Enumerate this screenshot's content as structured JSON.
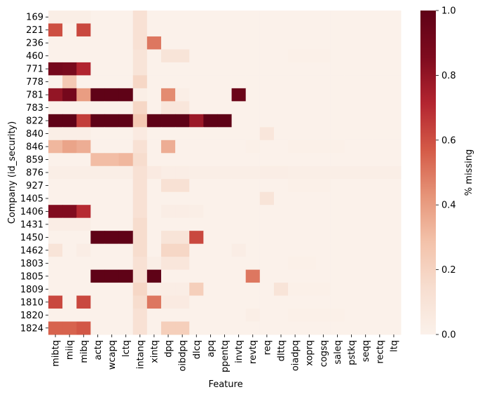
{
  "chart_data": {
    "type": "heatmap",
    "xlabel": "Feature",
    "ylabel": "Company (id_security)",
    "x_categories": [
      "mibtq",
      "miiq",
      "mibq",
      "actq",
      "wcapq",
      "lctq",
      "intanq",
      "xintq",
      "dpq",
      "oibdpq",
      "dlcq",
      "apq",
      "ppentq",
      "invtq",
      "revtq",
      "req",
      "dlttq",
      "oiadpq",
      "xoprq",
      "cogsq",
      "saleq",
      "pstkq",
      "seqq",
      "rectq",
      "ltq"
    ],
    "y_categories": [
      "169",
      "221",
      "236",
      "460",
      "771",
      "778",
      "781",
      "783",
      "822",
      "840",
      "846",
      "859",
      "876",
      "927",
      "1405",
      "1406",
      "1431",
      "1450",
      "1462",
      "1803",
      "1805",
      "1809",
      "1810",
      "1820",
      "1824"
    ],
    "values": [
      [
        0.02,
        0.02,
        0.02,
        0,
        0,
        0,
        0.12,
        0,
        0,
        0,
        0,
        0,
        0,
        0,
        0,
        0,
        0,
        0,
        0,
        0,
        0,
        0,
        0,
        0,
        0
      ],
      [
        0.6,
        0,
        0.62,
        0,
        0,
        0,
        0.12,
        0,
        0,
        0,
        0,
        0,
        0,
        0,
        0,
        0,
        0,
        0,
        0,
        0,
        0,
        0,
        0,
        0,
        0
      ],
      [
        0,
        0,
        0,
        0,
        0,
        0,
        0.12,
        0.5,
        0,
        0,
        0,
        0,
        0,
        0,
        0,
        0,
        0,
        0,
        0,
        0,
        0,
        0,
        0,
        0,
        0
      ],
      [
        0,
        0,
        0,
        0,
        0,
        0,
        0.1,
        0,
        0.1,
        0.1,
        0,
        0,
        0,
        0,
        0,
        0,
        0,
        0.01,
        0.01,
        0.01,
        0,
        0,
        0,
        0,
        0
      ],
      [
        0.9,
        0.88,
        0.72,
        0,
        0,
        0,
        0.1,
        0,
        0,
        0,
        0,
        0,
        0,
        0,
        0,
        0,
        0,
        0,
        0,
        0,
        0,
        0,
        0,
        0,
        0
      ],
      [
        0,
        0.25,
        0,
        0,
        0,
        0,
        0.18,
        0,
        0,
        0,
        0,
        0,
        0,
        0,
        0,
        0,
        0,
        0,
        0,
        0,
        0,
        0,
        0,
        0,
        0
      ],
      [
        0.8,
        0.9,
        0.4,
        1.0,
        1.0,
        1.0,
        0.02,
        0,
        0.45,
        0.02,
        0,
        0,
        0,
        0.95,
        0,
        0,
        0,
        0,
        0,
        0,
        0,
        0,
        0,
        0,
        0
      ],
      [
        0,
        0,
        0,
        0,
        0,
        0,
        0.18,
        0,
        0.08,
        0.08,
        0,
        0,
        0,
        0,
        0,
        0,
        0,
        0,
        0,
        0,
        0,
        0,
        0,
        0,
        0
      ],
      [
        1.0,
        1.0,
        0.65,
        1.0,
        1.0,
        1.0,
        0.25,
        1.0,
        1.0,
        1.0,
        0.78,
        1.0,
        1.0,
        0,
        0,
        0,
        0,
        0,
        0,
        0,
        0,
        0,
        0,
        0,
        0
      ],
      [
        0.02,
        0.02,
        0.02,
        0,
        0,
        0,
        0.05,
        0,
        0,
        0,
        0,
        0,
        0,
        0,
        0,
        0.08,
        0,
        0,
        0,
        0,
        0,
        0,
        0,
        0,
        0
      ],
      [
        0.32,
        0.38,
        0.35,
        0,
        0,
        0,
        0.12,
        0,
        0.35,
        0,
        0,
        0,
        0,
        0,
        0.01,
        0,
        0,
        0.01,
        0.01,
        0.01,
        0.01,
        0,
        0,
        0,
        0
      ],
      [
        0,
        0,
        0,
        0.3,
        0.3,
        0.32,
        0.15,
        0,
        0,
        0,
        0,
        0,
        0,
        0,
        0,
        0,
        0,
        0,
        0,
        0,
        0,
        0,
        0,
        0,
        0
      ],
      [
        0.02,
        0.02,
        0.02,
        0.02,
        0.02,
        0.02,
        0.12,
        0.05,
        0.03,
        0.03,
        0.02,
        0.02,
        0.02,
        0.02,
        0.02,
        0.03,
        0.03,
        0.02,
        0.02,
        0.02,
        0.02,
        0.02,
        0.02,
        0.02,
        0.02
      ],
      [
        0,
        0,
        0,
        0,
        0,
        0,
        0.12,
        0,
        0.12,
        0.12,
        0,
        0,
        0,
        0,
        0,
        0,
        0,
        0.01,
        0.01,
        0.01,
        0,
        0,
        0,
        0,
        0
      ],
      [
        0,
        0,
        0,
        0,
        0,
        0,
        0.12,
        0,
        0,
        0,
        0,
        0,
        0,
        0,
        0,
        0.1,
        0,
        0,
        0,
        0,
        0,
        0,
        0,
        0,
        0
      ],
      [
        0.85,
        0.85,
        0.7,
        0,
        0,
        0,
        0.12,
        0,
        0.03,
        0.03,
        0.02,
        0,
        0,
        0,
        0,
        0,
        0,
        0,
        0,
        0,
        0,
        0,
        0,
        0,
        0
      ],
      [
        0.03,
        0.03,
        0.03,
        0,
        0,
        0,
        0.15,
        0,
        0,
        0,
        0,
        0,
        0,
        0,
        0,
        0,
        0,
        0,
        0,
        0,
        0,
        0,
        0,
        0,
        0
      ],
      [
        0,
        0,
        0,
        1.0,
        1.0,
        1.0,
        0.15,
        0,
        0.1,
        0.1,
        0.62,
        0,
        0,
        0,
        0,
        0,
        0,
        0,
        0,
        0,
        0,
        0,
        0,
        0,
        0
      ],
      [
        0.1,
        0,
        0.03,
        0,
        0,
        0,
        0.15,
        0,
        0.18,
        0.18,
        0,
        0,
        0,
        0.03,
        0,
        0,
        0,
        0,
        0,
        0,
        0,
        0,
        0,
        0,
        0
      ],
      [
        0,
        0,
        0,
        0,
        0,
        0,
        0.12,
        0.02,
        0.08,
        0.08,
        0,
        0,
        0,
        0,
        0,
        0,
        0,
        0.01,
        0.01,
        0,
        0,
        0,
        0,
        0,
        0
      ],
      [
        0,
        0,
        0,
        1.0,
        1.0,
        1.0,
        0.12,
        1.0,
        0,
        0,
        0,
        0,
        0,
        0,
        0.5,
        0,
        0,
        0,
        0,
        0,
        0,
        0,
        0,
        0,
        0
      ],
      [
        0,
        0,
        0,
        0,
        0,
        0,
        0.18,
        0.02,
        0.03,
        0.03,
        0.22,
        0,
        0,
        0,
        0,
        0,
        0.1,
        0.01,
        0.01,
        0.01,
        0,
        0,
        0,
        0,
        0
      ],
      [
        0.62,
        0,
        0.62,
        0,
        0,
        0,
        0.15,
        0.5,
        0.05,
        0.05,
        0,
        0,
        0,
        0,
        0,
        0,
        0,
        0,
        0,
        0,
        0,
        0,
        0,
        0,
        0
      ],
      [
        0,
        0,
        0,
        0,
        0,
        0,
        0.12,
        0,
        0,
        0,
        0,
        0,
        0,
        0,
        0.02,
        0,
        0,
        0.01,
        0.01,
        0.01,
        0.01,
        0,
        0,
        0,
        0
      ],
      [
        0.55,
        0.55,
        0.58,
        0,
        0,
        0,
        0.12,
        0,
        0.22,
        0.22,
        0,
        0,
        0,
        0,
        0,
        0,
        0,
        0,
        0,
        0,
        0,
        0,
        0,
        0,
        0
      ]
    ],
    "colorbar": {
      "label": "% missing",
      "range": [
        0.0,
        1.0
      ],
      "ticks": [
        "0.0",
        "0.2",
        "0.4",
        "0.6",
        "0.8",
        "1.0"
      ],
      "colormap": "Reds (light cream to dark red)",
      "color_stops": [
        "#fbf1ea",
        "#f7ded0",
        "#f3c2aa",
        "#e69478",
        "#d45a47",
        "#b32530",
        "#7e0b1e",
        "#5f0217"
      ]
    },
    "grid": false
  }
}
